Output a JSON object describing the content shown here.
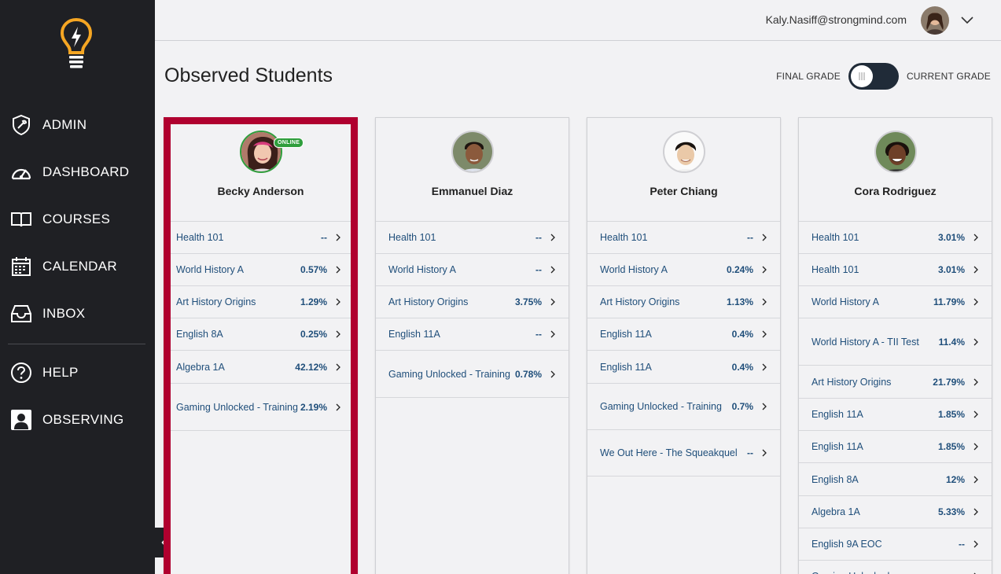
{
  "user": {
    "email": "Kaly.Nasiff@strongmind.com"
  },
  "nav": {
    "admin": "ADMIN",
    "dashboard": "DASHBOARD",
    "courses": "COURSES",
    "calendar": "CALENDAR",
    "inbox": "INBOX",
    "help": "HELP",
    "observing": "OBSERVING"
  },
  "page": {
    "title": "Observed Students"
  },
  "grade_toggle": {
    "left_label": "FINAL GRADE",
    "right_label": "CURRENT GRADE"
  },
  "students": [
    {
      "name": "Becky Anderson",
      "status": "ONLINE",
      "courses": [
        {
          "name": "Health 101",
          "grade": "--"
        },
        {
          "name": "World History A",
          "grade": "0.57%"
        },
        {
          "name": "Art History Origins",
          "grade": "1.29%"
        },
        {
          "name": "English 8A",
          "grade": "0.25%"
        },
        {
          "name": "Algebra 1A",
          "grade": "42.12%"
        },
        {
          "name": "Gaming Unlocked - Training",
          "grade": "2.19%"
        }
      ]
    },
    {
      "name": "Emmanuel Diaz",
      "courses": [
        {
          "name": "Health 101",
          "grade": "--"
        },
        {
          "name": "World History A",
          "grade": "--"
        },
        {
          "name": "Art History Origins",
          "grade": "3.75%"
        },
        {
          "name": "English 11A",
          "grade": "--"
        },
        {
          "name": "Gaming Unlocked - Training",
          "grade": "0.78%"
        }
      ]
    },
    {
      "name": "Peter Chiang",
      "courses": [
        {
          "name": "Health 101",
          "grade": "--"
        },
        {
          "name": "World History A",
          "grade": "0.24%"
        },
        {
          "name": "Art History Origins",
          "grade": "1.13%"
        },
        {
          "name": "English 11A",
          "grade": "0.4%"
        },
        {
          "name": "English 11A",
          "grade": "0.4%"
        },
        {
          "name": "Gaming Unlocked - Training",
          "grade": "0.7%"
        },
        {
          "name": "We Out Here - The Squeakquel",
          "grade": "--"
        }
      ]
    },
    {
      "name": "Cora Rodriguez",
      "courses": [
        {
          "name": "Health 101",
          "grade": "3.01%"
        },
        {
          "name": "Health 101",
          "grade": "3.01%"
        },
        {
          "name": "World History A",
          "grade": "11.79%"
        },
        {
          "name": "World History A - TII Test",
          "grade": "11.4%"
        },
        {
          "name": "Art History Origins",
          "grade": "21.79%"
        },
        {
          "name": "English 11A",
          "grade": "1.85%"
        },
        {
          "name": "English 11A",
          "grade": "1.85%"
        },
        {
          "name": "English 8A",
          "grade": "12%"
        },
        {
          "name": "Algebra 1A",
          "grade": "5.33%"
        },
        {
          "name": "English 9A EOC",
          "grade": "--"
        },
        {
          "name": "Gaming Unlocked",
          "grade": ""
        }
      ]
    }
  ]
}
